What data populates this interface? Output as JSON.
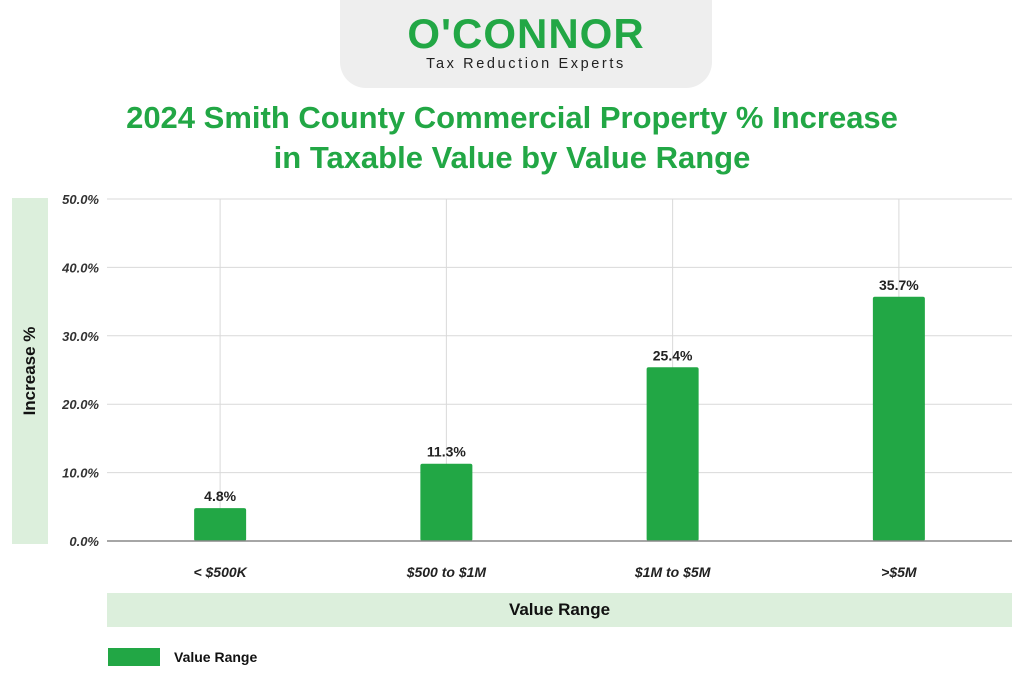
{
  "logo": {
    "wordmark": "O'CONNOR",
    "tagline": "Tax Reduction Experts"
  },
  "chart_data": {
    "type": "bar",
    "title_line1": "2024 Smith County Commercial Property % Increase",
    "title_line2": "in Taxable Value by Value Range",
    "xlabel": "Value Range",
    "ylabel": "Increase %",
    "categories": [
      "< $500K",
      "$500 to $1M",
      "$1M to $5M",
      ">$5M"
    ],
    "series": [
      {
        "name": "Value Range",
        "values": [
          4.8,
          11.3,
          25.4,
          35.7
        ]
      }
    ],
    "data_labels": [
      "4.8%",
      "11.3%",
      "25.4%",
      "35.7%"
    ],
    "yticks": [
      "0.0%",
      "10.0%",
      "20.0%",
      "30.0%",
      "40.0%",
      "50.0%"
    ],
    "ylim": [
      0,
      50
    ],
    "grid": true,
    "legend_position": "bottom-left",
    "colors": {
      "bar": "#22a745",
      "title": "#22a745",
      "band": "#dcefdc"
    }
  }
}
